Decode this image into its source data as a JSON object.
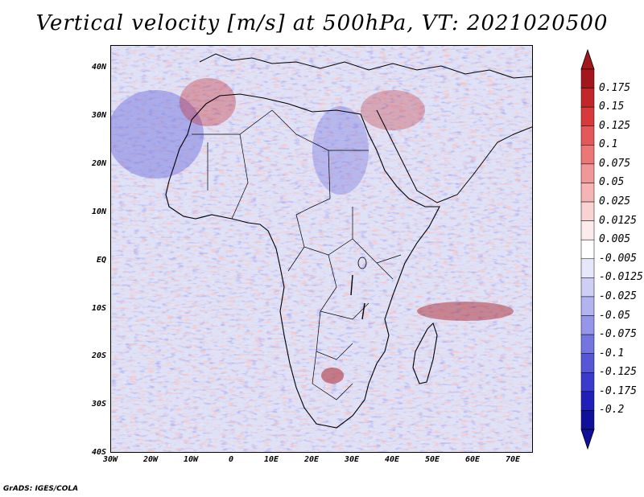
{
  "title": "Vertical velocity [m/s] at 500hPa, VT: 2021020500",
  "credit": "GrADS: IGES/COLA",
  "map": {
    "projection": "lat-lon",
    "lon_range": [
      -30,
      75
    ],
    "lat_range": [
      -40,
      45
    ]
  },
  "axes": {
    "lat_labels": [
      "40N",
      "30N",
      "20N",
      "10N",
      "EQ",
      "10S",
      "20S",
      "30S",
      "40S"
    ],
    "lon_labels": [
      "30W",
      "20W",
      "10W",
      "0",
      "10E",
      "20E",
      "30E",
      "40E",
      "50E",
      "60E",
      "70E"
    ]
  },
  "colorbar": {
    "labels": [
      "0.175",
      "0.15",
      "0.125",
      "0.1",
      "0.075",
      "0.05",
      "0.025",
      "0.0125",
      "0.005",
      "-0.005",
      "-0.0125",
      "-0.025",
      "-0.05",
      "-0.075",
      "-0.1",
      "-0.125",
      "-0.175",
      "-0.2"
    ],
    "colors": [
      "#a3161c",
      "#c0262a",
      "#d63a3a",
      "#e35858",
      "#ec7777",
      "#f29797",
      "#f6b5b5",
      "#f9d2d2",
      "#fcebeb",
      "#ffffff",
      "#e7e7fb",
      "#cfcff6",
      "#b3b3f0",
      "#9595ea",
      "#7575e0",
      "#5656d6",
      "#3a3acb",
      "#2020b8",
      "#10109a"
    ]
  }
}
